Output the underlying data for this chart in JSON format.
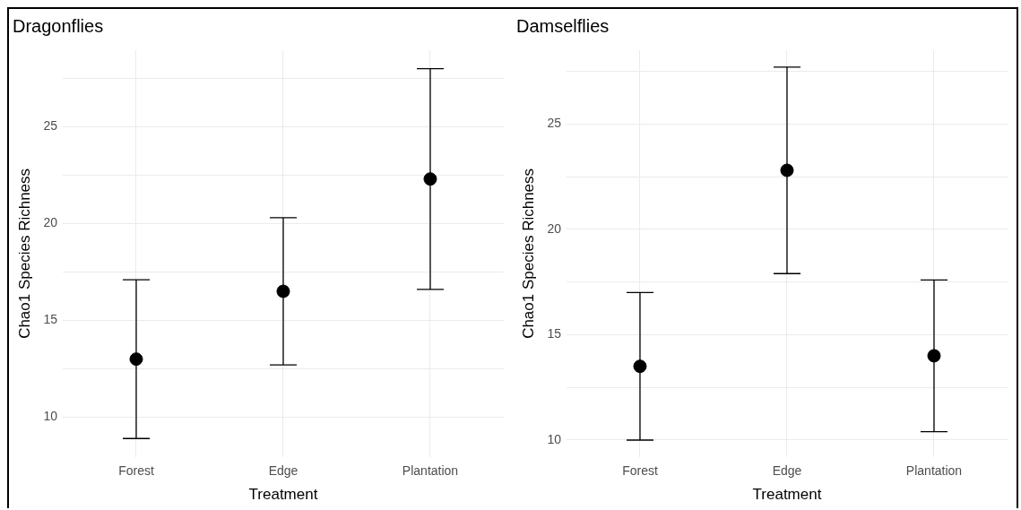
{
  "chart_data": [
    {
      "type": "scatter",
      "title": "Dragonflies",
      "xlabel": "Treatment",
      "ylabel": "Chao1 Species Richness",
      "categories": [
        "Forest",
        "Edge",
        "Plantation"
      ],
      "series": [
        {
          "color": "#000000",
          "values": [
            13.0,
            16.5,
            22.3
          ],
          "errors": [
            4.1,
            3.8,
            5.7
          ]
        }
      ],
      "ylim": [
        7.95,
        28.95
      ],
      "yticks": [
        10,
        {
          "value": 12.5,
          "label": null
        },
        15,
        {
          "value": 17.5,
          "label": null
        },
        20,
        {
          "value": 22.5,
          "label": null
        },
        25,
        {
          "value": 27.5,
          "label": null
        }
      ],
      "grid": true,
      "legend": false,
      "marker": "circle"
    },
    {
      "type": "scatter",
      "title": "Damselflies",
      "xlabel": "Treatment",
      "ylabel": "Chao1 Species Richness",
      "categories": [
        "Forest",
        "Edge",
        "Plantation"
      ],
      "series": [
        {
          "color": "#000000",
          "values": [
            13.5,
            22.8,
            14.0
          ],
          "errors": [
            3.5,
            4.9,
            3.6
          ]
        }
      ],
      "ylim": [
        9.2,
        28.5
      ],
      "yticks": [
        10,
        {
          "value": 12.5,
          "label": null
        },
        15,
        {
          "value": 17.5,
          "label": null
        },
        20,
        {
          "value": 22.5,
          "label": null
        },
        25,
        {
          "value": 27.5,
          "label": null
        }
      ],
      "grid": true,
      "legend": false,
      "marker": "circle"
    }
  ]
}
